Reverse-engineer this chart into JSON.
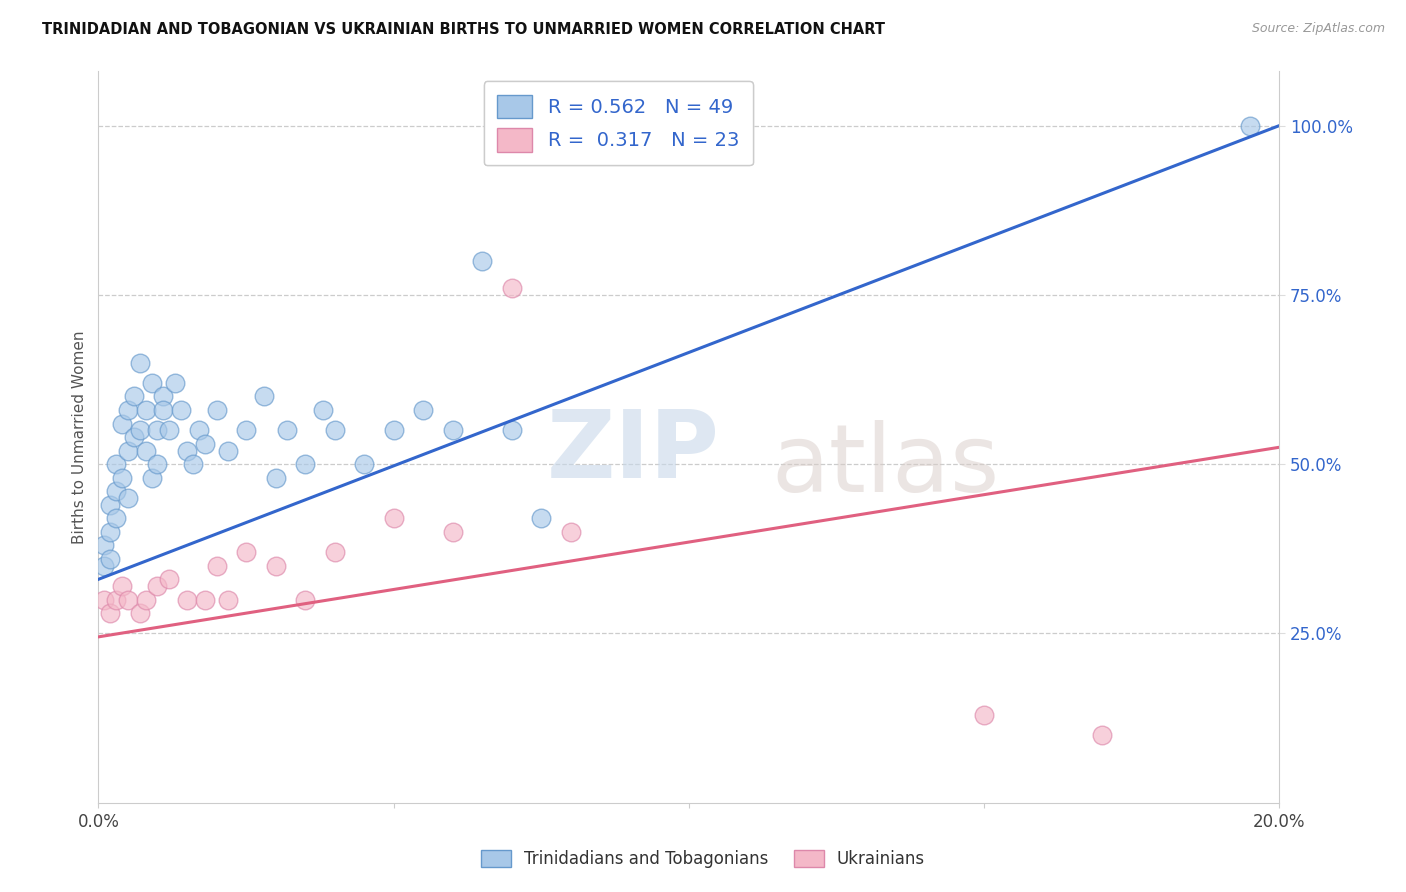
{
  "title": "TRINIDADIAN AND TOBAGONIAN VS UKRAINIAN BIRTHS TO UNMARRIED WOMEN CORRELATION CHART",
  "source": "Source: ZipAtlas.com",
  "ylabel": "Births to Unmarried Women",
  "xlim": [
    0.0,
    0.2
  ],
  "ylim": [
    0.0,
    1.08
  ],
  "xticks": [
    0.0,
    0.05,
    0.1,
    0.15,
    0.2
  ],
  "xtick_labels": [
    "0.0%",
    "",
    "",
    "",
    "20.0%"
  ],
  "yticks_right": [
    0.25,
    0.5,
    0.75,
    1.0
  ],
  "ytick_labels_right": [
    "25.0%",
    "50.0%",
    "75.0%",
    "100.0%"
  ],
  "blue_R": 0.562,
  "blue_N": 49,
  "pink_R": 0.317,
  "pink_N": 23,
  "blue_color": "#a8c8e8",
  "pink_color": "#f4b8c8",
  "blue_line_color": "#3366cc",
  "pink_line_color": "#e06080",
  "legend_label_blue": "Trinidadians and Tobagonians",
  "legend_label_pink": "Ukrainians",
  "blue_x": [
    0.001,
    0.001,
    0.002,
    0.002,
    0.002,
    0.003,
    0.003,
    0.003,
    0.004,
    0.004,
    0.005,
    0.005,
    0.005,
    0.006,
    0.006,
    0.007,
    0.007,
    0.008,
    0.008,
    0.009,
    0.009,
    0.01,
    0.01,
    0.011,
    0.011,
    0.012,
    0.013,
    0.014,
    0.015,
    0.016,
    0.017,
    0.018,
    0.02,
    0.022,
    0.025,
    0.028,
    0.03,
    0.032,
    0.035,
    0.038,
    0.04,
    0.045,
    0.05,
    0.055,
    0.06,
    0.065,
    0.07,
    0.075,
    0.195
  ],
  "blue_y": [
    0.35,
    0.38,
    0.4,
    0.44,
    0.36,
    0.42,
    0.46,
    0.5,
    0.48,
    0.56,
    0.45,
    0.52,
    0.58,
    0.54,
    0.6,
    0.55,
    0.65,
    0.52,
    0.58,
    0.48,
    0.62,
    0.5,
    0.55,
    0.6,
    0.58,
    0.55,
    0.62,
    0.58,
    0.52,
    0.5,
    0.55,
    0.53,
    0.58,
    0.52,
    0.55,
    0.6,
    0.48,
    0.55,
    0.5,
    0.58,
    0.55,
    0.5,
    0.55,
    0.58,
    0.55,
    0.8,
    0.55,
    0.42,
    1.0
  ],
  "pink_x": [
    0.001,
    0.002,
    0.003,
    0.004,
    0.005,
    0.007,
    0.008,
    0.01,
    0.012,
    0.015,
    0.018,
    0.02,
    0.022,
    0.025,
    0.03,
    0.035,
    0.04,
    0.05,
    0.06,
    0.07,
    0.08,
    0.15,
    0.17
  ],
  "pink_y": [
    0.3,
    0.28,
    0.3,
    0.32,
    0.3,
    0.28,
    0.3,
    0.32,
    0.33,
    0.3,
    0.3,
    0.35,
    0.3,
    0.37,
    0.35,
    0.3,
    0.37,
    0.42,
    0.4,
    0.76,
    0.4,
    0.13,
    0.1
  ],
  "blue_line_x": [
    0.0,
    0.2
  ],
  "blue_line_y": [
    0.33,
    1.0
  ],
  "pink_line_x": [
    0.0,
    0.2
  ],
  "pink_line_y": [
    0.245,
    0.525
  ]
}
